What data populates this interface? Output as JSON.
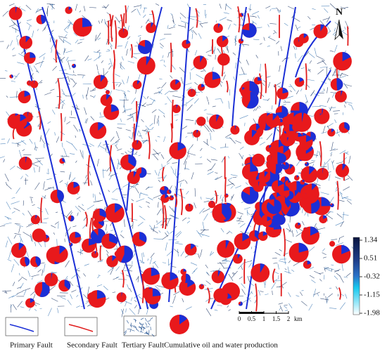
{
  "north": "N",
  "colorbar": {
    "ticks": [
      1.34,
      0.51,
      -0.32,
      -1.15,
      -1.98
    ]
  },
  "scale_bar": {
    "ticks": [
      0,
      0.5,
      1,
      1.5,
      2
    ],
    "unit": "km"
  },
  "legend": [
    "Primary Fault",
    "Secondary Fault",
    "Tertiary Fault",
    "Cumulative oil and water production"
  ]
}
